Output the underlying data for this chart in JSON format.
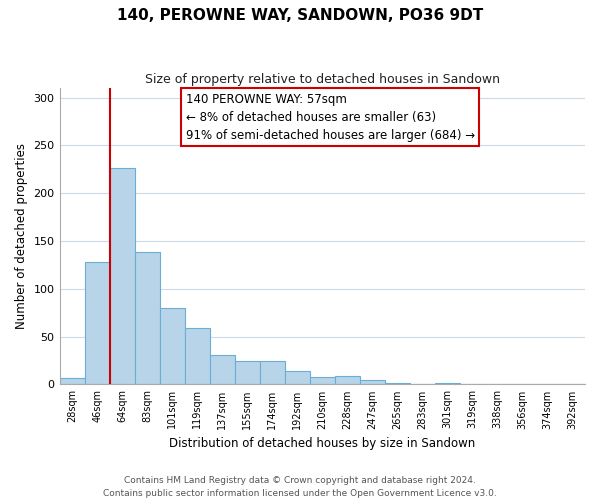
{
  "title": "140, PEROWNE WAY, SANDOWN, PO36 9DT",
  "subtitle": "Size of property relative to detached houses in Sandown",
  "xlabel": "Distribution of detached houses by size in Sandown",
  "ylabel": "Number of detached properties",
  "bar_labels": [
    "28sqm",
    "46sqm",
    "64sqm",
    "83sqm",
    "101sqm",
    "119sqm",
    "137sqm",
    "155sqm",
    "174sqm",
    "192sqm",
    "210sqm",
    "228sqm",
    "247sqm",
    "265sqm",
    "283sqm",
    "301sqm",
    "319sqm",
    "338sqm",
    "356sqm",
    "374sqm",
    "392sqm"
  ],
  "bar_values": [
    7,
    128,
    226,
    139,
    80,
    59,
    31,
    25,
    25,
    14,
    8,
    9,
    5,
    2,
    0,
    1,
    0,
    0,
    0,
    0,
    0
  ],
  "bar_color": "#b8d4e8",
  "bar_edge_color": "#6aaed6",
  "ylim": [
    0,
    310
  ],
  "yticks": [
    0,
    50,
    100,
    150,
    200,
    250,
    300
  ],
  "annotation_line1": "140 PEROWNE WAY: 57sqm",
  "annotation_line2": "← 8% of detached houses are smaller (63)",
  "annotation_line3": "91% of semi-detached houses are larger (684) →",
  "vline_x": 1.5,
  "vline_color": "#cc0000",
  "footer_line1": "Contains HM Land Registry data © Crown copyright and database right 2024.",
  "footer_line2": "Contains public sector information licensed under the Open Government Licence v3.0.",
  "background_color": "#ffffff",
  "grid_color": "#ccd9e8"
}
